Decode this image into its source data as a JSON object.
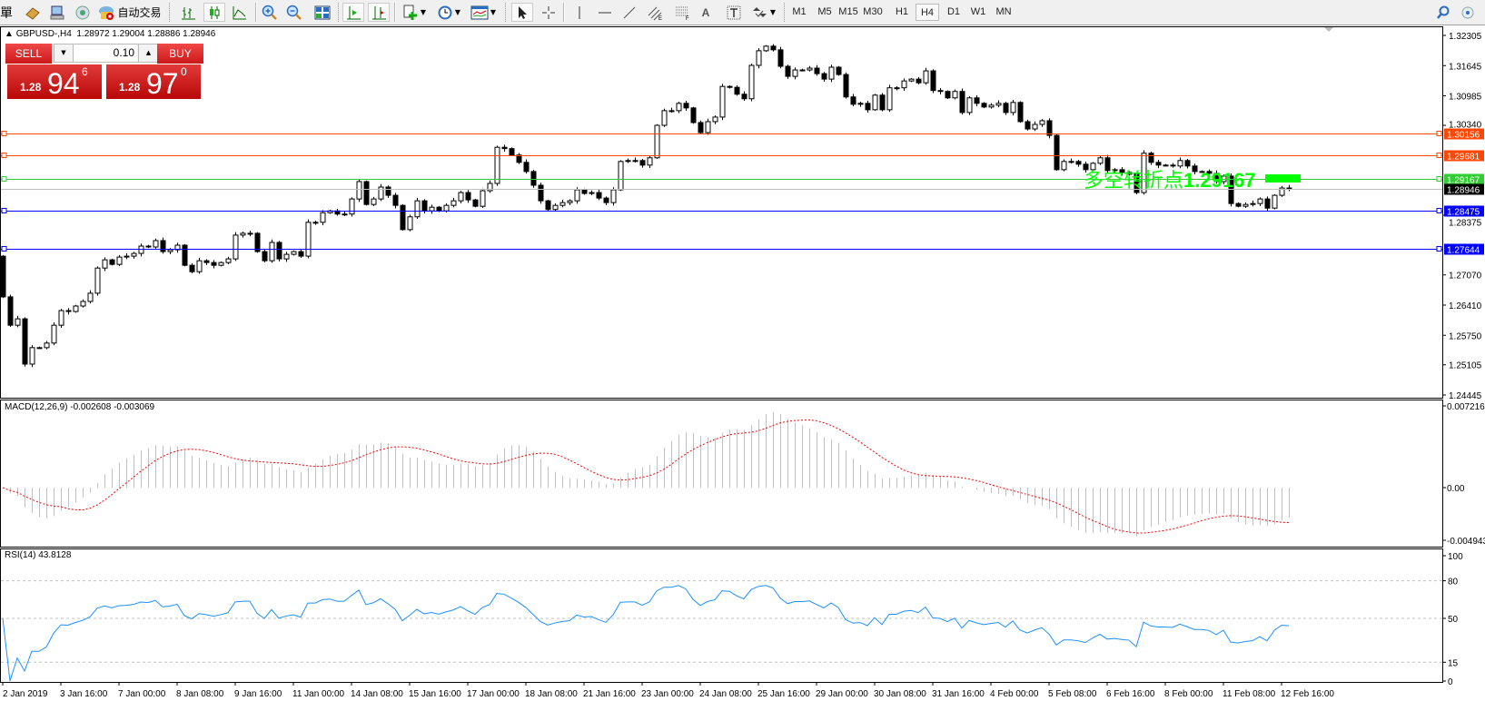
{
  "toolbar": {
    "partial_label": "單",
    "autotrading_label": "自动交易",
    "timeframes": [
      "M1",
      "M5",
      "M15",
      "M30",
      "H1",
      "H4",
      "D1",
      "W1",
      "MN"
    ],
    "active_timeframe": "H4"
  },
  "chart": {
    "header": {
      "symbol": "GBPUSD-,H4",
      "ohlc": "1.28972 1.29004 1.28886 1.28946"
    },
    "trade_panel": {
      "sell_label": "SELL",
      "buy_label": "BUY",
      "lot": "0.10",
      "sell_price": {
        "prefix": "1.28",
        "big": "94",
        "small": "6"
      },
      "buy_price": {
        "prefix": "1.28",
        "big": "97",
        "small": "0"
      }
    },
    "price_axis": [
      "1.32305",
      "1.31645",
      "1.30985",
      "1.30340",
      "1.28375",
      "1.27070",
      "1.26410",
      "1.25750",
      "1.25105",
      "1.24445"
    ],
    "hlines": [
      {
        "price": "1.30156",
        "color": "#ff4500",
        "label_color": "#ff4500"
      },
      {
        "price": "1.29681",
        "color": "#ff4500",
        "label_color": "#ff4500"
      },
      {
        "price": "1.29167",
        "color": "#32cd32",
        "label_color": "#32cd32"
      },
      {
        "price": "1.28946",
        "color": "#c0c0c0",
        "label_color": "#000000"
      },
      {
        "price": "1.28475",
        "color": "#0000ff",
        "label_color": "#0000ff"
      },
      {
        "price": "1.27644",
        "color": "#0000ff",
        "label_color": "#0000ff"
      }
    ],
    "annotation": {
      "text": "多空转折点",
      "value": "1.29167",
      "color": "#00ff00"
    },
    "time_labels": [
      "2 Jan 2019",
      "3 Jan 16:00",
      "7 Jan 00:00",
      "8 Jan 08:00",
      "9 Jan 16:00",
      "11 Jan 00:00",
      "14 Jan 08:00",
      "15 Jan 16:00",
      "17 Jan 00:00",
      "18 Jan 08:00",
      "21 Jan 16:00",
      "23 Jan 00:00",
      "24 Jan 08:00",
      "25 Jan 16:00",
      "29 Jan 00:00",
      "30 Jan 08:00",
      "31 Jan 16:00",
      "4 Feb 00:00",
      "5 Feb 08:00",
      "6 Feb 16:00",
      "8 Feb 00:00",
      "11 Feb 08:00",
      "12 Feb 16:00"
    ],
    "candles": {
      "first_open": 1.2748,
      "closes": [
        1.2659,
        1.2597,
        1.2611,
        1.2512,
        1.2548,
        1.2548,
        1.2558,
        1.2597,
        1.2629,
        1.2627,
        1.2639,
        1.2649,
        1.2667,
        1.2722,
        1.274,
        1.273,
        1.2746,
        1.2748,
        1.2754,
        1.277,
        1.2768,
        1.2782,
        1.2758,
        1.2762,
        1.2772,
        1.2728,
        1.2714,
        1.2738,
        1.2734,
        1.2728,
        1.2734,
        1.2742,
        1.2794,
        1.2798,
        1.2798,
        1.2758,
        1.2738,
        1.2778,
        1.2742,
        1.2752,
        1.2758,
        1.2748,
        1.2822,
        1.2822,
        1.2843,
        1.2847,
        1.284,
        1.284,
        1.2873,
        1.2911,
        1.2861,
        1.2873,
        1.2899,
        1.2881,
        1.2859,
        1.2806,
        1.2834,
        1.2869,
        1.2847,
        1.2855,
        1.2847,
        1.2859,
        1.2869,
        1.2887,
        1.2871,
        1.2857,
        1.2891,
        1.2907,
        1.2986,
        1.2983,
        1.2969,
        1.2953,
        1.2933,
        1.2903,
        1.2869,
        1.285,
        1.2859,
        1.2865,
        1.2869,
        1.2893,
        1.2885,
        1.2887,
        1.2875,
        1.2865,
        1.2893,
        1.2955,
        1.2957,
        1.2957,
        1.2947,
        1.2963,
        1.3034,
        1.3066,
        1.3066,
        1.3082,
        1.3072,
        1.304,
        1.3018,
        1.3042,
        1.3052,
        1.3119,
        1.3117,
        1.3102,
        1.3092,
        1.3165,
        1.3197,
        1.3207,
        1.3199,
        1.3163,
        1.3141,
        1.3155,
        1.3155,
        1.3159,
        1.3147,
        1.3135,
        1.3161,
        1.3145,
        1.3096,
        1.308,
        1.3082,
        1.3068,
        1.31,
        1.3068,
        1.3116,
        1.3116,
        1.3131,
        1.3135,
        1.3127,
        1.3153,
        1.311,
        1.3108,
        1.3094,
        1.3108,
        1.3062,
        1.3094,
        1.3082,
        1.3074,
        1.3078,
        1.3082,
        1.3062,
        1.3084,
        1.3042,
        1.3026,
        1.3036,
        1.3044,
        1.3012,
        1.2937,
        1.2955,
        1.2955,
        1.2949,
        1.2937,
        1.2951,
        1.2963,
        1.2935,
        1.2937,
        1.2931,
        1.2927,
        1.2887,
        1.2973,
        1.2953,
        1.2947,
        1.2947,
        1.2945,
        1.2957,
        1.2945,
        1.2933,
        1.2933,
        1.2929,
        1.2911,
        1.2923,
        1.2863,
        1.2857,
        1.2861,
        1.2863,
        1.2873,
        1.2853,
        1.2881,
        1.2897,
        1.28946
      ]
    }
  },
  "macd": {
    "title": "MACD(12,26,9)",
    "values": "-0.002608 -0.003069",
    "axis": [
      "0.007216",
      "0.00",
      "-0.004943"
    ],
    "histogram_color": "#c0c0c0",
    "signal_color": "#ff0000"
  },
  "rsi": {
    "title": "RSI(14)",
    "value": "43.8128",
    "axis": [
      "100",
      "80",
      "50",
      "15",
      "0"
    ],
    "levels": [
      80,
      50,
      15
    ],
    "line_color": "#1e90ff"
  }
}
